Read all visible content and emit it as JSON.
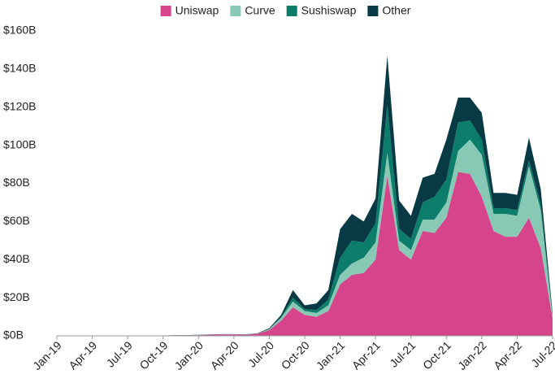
{
  "chart_data": {
    "type": "stacked_area",
    "categories": [
      "Jan-19",
      null,
      null,
      "Apr-19",
      null,
      null,
      "Jul-19",
      null,
      null,
      "Oct-19",
      null,
      null,
      "Jan-20",
      null,
      null,
      "Apr-20",
      null,
      null,
      "Jul-20",
      null,
      null,
      "Oct-20",
      null,
      null,
      "Jan-21",
      null,
      null,
      "Apr-21",
      null,
      null,
      "Jul-21",
      null,
      null,
      "Oct-21",
      null,
      null,
      "Jan-22",
      null,
      null,
      "Apr-22",
      null,
      null,
      "Jul-22"
    ],
    "series": [
      {
        "name": "Uniswap",
        "color": "#d6448c",
        "values": [
          0.1,
          0.1,
          0.1,
          0.1,
          0.1,
          0.1,
          0.1,
          0.1,
          0.1,
          0.1,
          0.2,
          0.3,
          0.4,
          0.6,
          0.7,
          0.7,
          0.6,
          1.2,
          3,
          8,
          15,
          11,
          10,
          13,
          27,
          32,
          33,
          40,
          84,
          45,
          40,
          55,
          54,
          62,
          86,
          85,
          73,
          55,
          52,
          52,
          62,
          46,
          9
        ]
      },
      {
        "name": "Curve",
        "color": "#88c9b5",
        "values": [
          0,
          0,
          0,
          0,
          0,
          0,
          0,
          0,
          0,
          0,
          0,
          0,
          0.1,
          0.1,
          0.1,
          0.1,
          0.1,
          0.1,
          0.5,
          1.5,
          3,
          2,
          2,
          3,
          5,
          6,
          8,
          9,
          12,
          5,
          5,
          6,
          7,
          8,
          11,
          18,
          22,
          9,
          12,
          11,
          27,
          20,
          1
        ]
      },
      {
        "name": "Sushiswap",
        "color": "#0b7d6a",
        "values": [
          0,
          0,
          0,
          0,
          0,
          0,
          0,
          0,
          0,
          0,
          0,
          0,
          0,
          0,
          0,
          0,
          0,
          0,
          0,
          0.5,
          2,
          1,
          1.5,
          3,
          9,
          12,
          8,
          10,
          25,
          6,
          6,
          9,
          12,
          12,
          15,
          10,
          8,
          3,
          3,
          3,
          3,
          3,
          0.5
        ]
      },
      {
        "name": "Other",
        "color": "#083a46",
        "values": [
          0.1,
          0.1,
          0.1,
          0.1,
          0.1,
          0.1,
          0.1,
          0.1,
          0.1,
          0.1,
          0.1,
          0.1,
          0.1,
          0.1,
          0.1,
          0.1,
          0.1,
          0.1,
          0.5,
          1,
          4,
          2,
          3.5,
          5,
          15,
          14,
          11,
          13,
          26,
          15,
          12,
          13,
          12,
          21,
          13,
          12,
          14,
          8,
          8,
          8,
          12,
          8,
          1.5
        ]
      }
    ],
    "ylim": [
      0,
      160
    ],
    "yticks": [
      {
        "value": 0,
        "label": "$0B"
      },
      {
        "value": 20,
        "label": "$20B"
      },
      {
        "value": 40,
        "label": "$40B"
      },
      {
        "value": 60,
        "label": "$60B"
      },
      {
        "value": 80,
        "label": "$80B"
      },
      {
        "value": 100,
        "label": "$100B"
      },
      {
        "value": 120,
        "label": "$120B"
      },
      {
        "value": 140,
        "label": "$140B"
      },
      {
        "value": 160,
        "label": "$160B"
      }
    ],
    "legend": "top",
    "grid": false
  }
}
